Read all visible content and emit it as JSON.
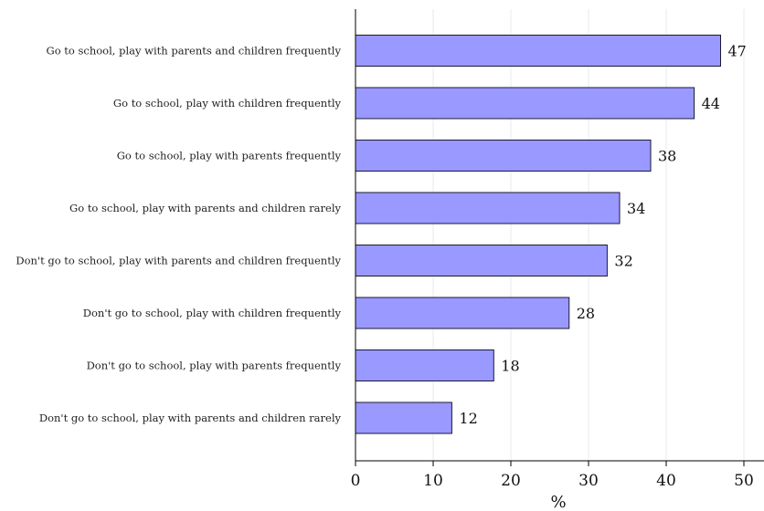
{
  "chart_data": {
    "type": "bar",
    "orientation": "horizontal",
    "categories": [
      "Go to school, play with parents and children frequently",
      "Go to school, play with children frequently",
      "Go to school, play with parents frequently",
      "Go to school, play with parents and children rarely",
      "Don't go to school, play with parents and children frequently",
      "Don't go to school, play with children frequently",
      "Don't go to school, play with parents frequently",
      "Don't go to school, play with parents and children rarely"
    ],
    "values": [
      47,
      43.6,
      38,
      34,
      32.4,
      27.5,
      17.8,
      12.4
    ],
    "data_labels": [
      "47",
      "44",
      "38",
      "34",
      "32",
      "28",
      "18",
      "12"
    ],
    "xlabel": "%",
    "xlim": [
      0,
      50
    ],
    "xticks": [
      "0",
      "10",
      "20",
      "30",
      "40",
      "50"
    ],
    "grid": "vertical",
    "bar_color": "#9999ff",
    "bar_edge_color": "#1a1a33",
    "grid_color": "#e6ebef"
  }
}
